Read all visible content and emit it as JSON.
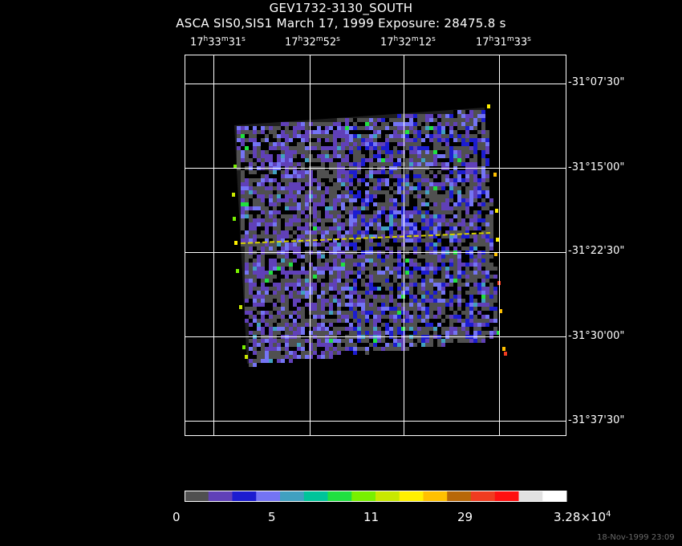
{
  "header": {
    "title": "GEV1732-3130_SOUTH",
    "subtitle": "ASCA SIS0,SIS1 March 17, 1999 Exposure: 28475.8 s"
  },
  "ra_labels": [
    {
      "h": "17",
      "m": "33",
      "s": "31"
    },
    {
      "h": "17",
      "m": "32",
      "s": "52"
    },
    {
      "h": "17",
      "m": "32",
      "s": "12"
    },
    {
      "h": "17",
      "m": "31",
      "s": "33"
    }
  ],
  "dec_labels": [
    "-31°07'30\"",
    "-31°15'00\"",
    "-31°22'30\"",
    "-31°30'00\"",
    "-31°37'30\""
  ],
  "colorbar": {
    "colors": [
      "#505050",
      "#6040b8",
      "#1c1cd0",
      "#7474f4",
      "#40a0c0",
      "#00c49a",
      "#20e040",
      "#78f000",
      "#c8e800",
      "#fff000",
      "#ffc000",
      "#b86808",
      "#f03c20",
      "#ff1010",
      "#e2e2e2",
      "#ffffff"
    ],
    "labels": {
      "l0": "0",
      "l1": "5",
      "l2": "11",
      "l3": "29",
      "max_mant": "3.28×10",
      "max_exp": "4"
    }
  },
  "timestamp": "18-Nov-1999 23:09"
}
